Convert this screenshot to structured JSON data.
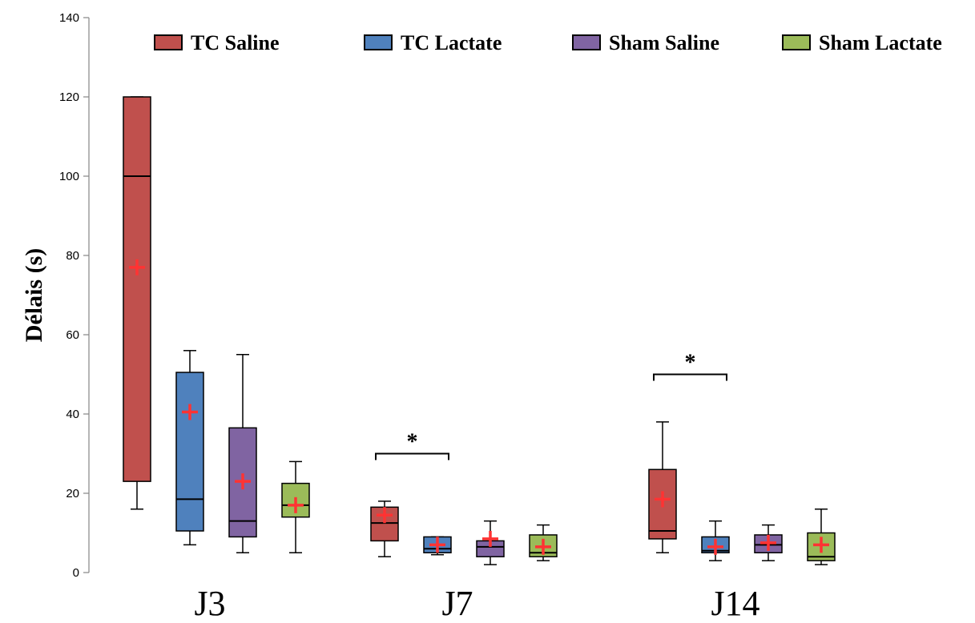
{
  "chart_data": {
    "type": "boxplot",
    "ylabel": "Délais (s)",
    "xlabel": "",
    "ylim": [
      0,
      140
    ],
    "yticks": [
      0,
      20,
      40,
      60,
      80,
      100,
      120,
      140
    ],
    "grid": false,
    "legend_position": "top",
    "categories": [
      "J3",
      "J7",
      "J14"
    ],
    "series": [
      {
        "name": "TC Saline",
        "color": "#C0504D",
        "boxes": [
          {
            "min": 16,
            "q1": 23,
            "median": 100,
            "q3": 120,
            "max": 120,
            "mean": 77
          },
          {
            "min": 4,
            "q1": 8,
            "median": 12.5,
            "q3": 16.5,
            "max": 18,
            "mean": 14.5
          },
          {
            "min": 5,
            "q1": 8.5,
            "median": 10.5,
            "q3": 26,
            "max": 38,
            "mean": 18.5
          }
        ]
      },
      {
        "name": "TC Lactate",
        "color": "#4F81BD",
        "boxes": [
          {
            "min": 7,
            "q1": 10.5,
            "median": 18.5,
            "q3": 50.5,
            "max": 56,
            "mean": 40.5
          },
          {
            "min": 4.5,
            "q1": 5,
            "median": 6,
            "q3": 9,
            "max": 9,
            "mean": 7
          },
          {
            "min": 3,
            "q1": 5,
            "median": 5.5,
            "q3": 9,
            "max": 13,
            "mean": 6.5
          }
        ]
      },
      {
        "name": "Sham Saline",
        "color": "#8064A2",
        "boxes": [
          {
            "min": 5,
            "q1": 9,
            "median": 13,
            "q3": 36.5,
            "max": 55,
            "mean": 23
          },
          {
            "min": 2,
            "q1": 4,
            "median": 6.5,
            "q3": 8,
            "max": 13,
            "mean": 8.5
          },
          {
            "min": 3,
            "q1": 5,
            "median": 7,
            "q3": 9.5,
            "max": 12,
            "mean": 7.5
          }
        ]
      },
      {
        "name": "Sham Lactate",
        "color": "#9BBB59",
        "boxes": [
          {
            "min": 5,
            "q1": 14,
            "median": 17,
            "q3": 22.5,
            "max": 28,
            "mean": 17
          },
          {
            "min": 3,
            "q1": 4,
            "median": 5,
            "q3": 9.5,
            "max": 12,
            "mean": 6.5
          },
          {
            "min": 2,
            "q1": 3,
            "median": 4,
            "q3": 10,
            "max": 16,
            "mean": 7
          }
        ]
      }
    ],
    "mean_marker": {
      "symbol": "+",
      "color": "#FF3333"
    },
    "annotations": [
      {
        "text": "*",
        "category": "J7",
        "from_series": 0,
        "to_series": 1,
        "y": 30
      },
      {
        "text": "*",
        "category": "J14",
        "from_series": 0,
        "to_series": 1,
        "y": 50
      }
    ]
  }
}
